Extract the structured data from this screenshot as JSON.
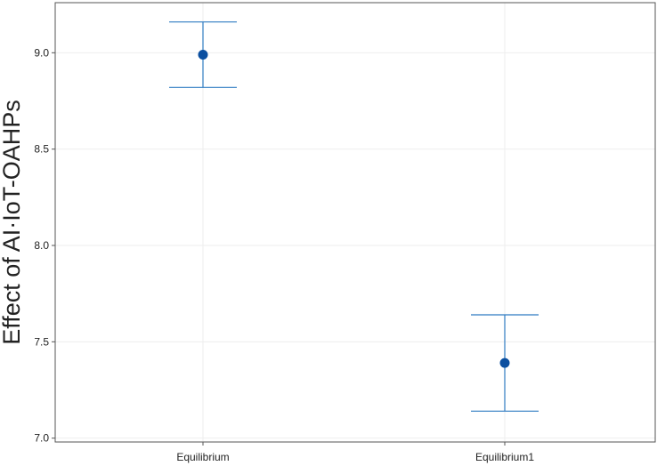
{
  "chart_data": {
    "type": "scatter",
    "title": "",
    "xlabel": "",
    "ylabel": "Effect of AI·IoT-OAHPs",
    "categories": [
      "Equilibrium",
      "Equilibrium1"
    ],
    "points": [
      {
        "category": "Equilibrium",
        "mean": 8.99,
        "lower": 8.82,
        "upper": 9.16
      },
      {
        "category": "Equilibrium1",
        "mean": 7.39,
        "lower": 7.14,
        "upper": 7.64
      }
    ],
    "ylim": [
      6.98,
      9.26
    ],
    "yticks": [
      7.0,
      7.5,
      8.0,
      8.5,
      9.0
    ],
    "ytick_labels": [
      "7.0",
      "7.5",
      "8.0",
      "8.5",
      "9.0"
    ],
    "grid": true,
    "legend": "none",
    "colors": {
      "point": "#0b4fa0",
      "errorbar": "#2f7bc2",
      "grid": "#eeeeee",
      "frame": "#555555"
    }
  }
}
